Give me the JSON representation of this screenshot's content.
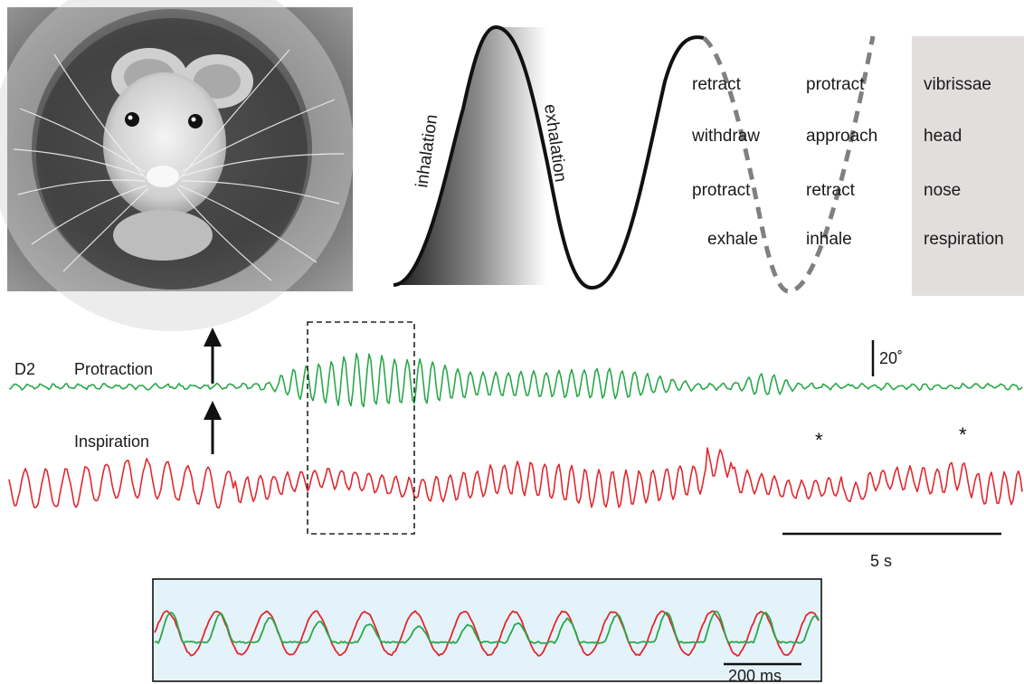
{
  "photo": {
    "alt_icon": "rat-photo"
  },
  "cycle_diagram": {
    "phase_labels": [
      "inhalation",
      "exhalation"
    ],
    "columns": [
      [
        "retract",
        "withdraw",
        "protract",
        "exhale"
      ],
      [
        "protract",
        "approach",
        "retract",
        "inhale"
      ]
    ],
    "row_labels": [
      "vibrissae",
      "head",
      "nose",
      "respiration"
    ],
    "row_panel_color": "#e2dedd"
  },
  "traces": {
    "d2_label": "D2",
    "protraction_label": "Protraction",
    "inspiration_label": "Inspiration",
    "scale_bar_amplitude": "20˚",
    "scale_bar_time": "5 s",
    "star_marks": [
      "*",
      "*"
    ],
    "protraction_color": "#2aa84a",
    "inspiration_color": "#e0292f"
  },
  "inset": {
    "scale_bar_label": "200 ms",
    "background_color": "#e4f3fa"
  }
}
